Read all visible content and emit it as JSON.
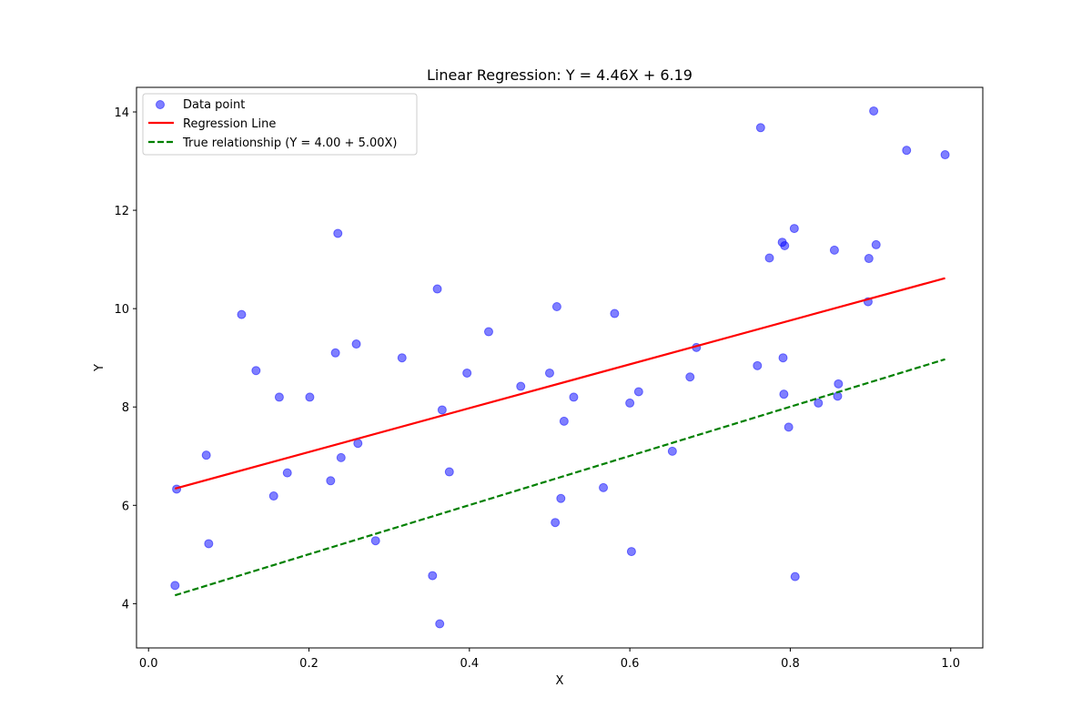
{
  "chart_data": {
    "type": "scatter",
    "title": "Linear Regression: Y = 4.46X + 6.19",
    "xlabel": "X",
    "ylabel": "Y",
    "xlim": [
      -0.015,
      1.04
    ],
    "ylim": [
      3.1,
      14.5
    ],
    "xticks": [
      0.0,
      0.2,
      0.4,
      0.6,
      0.8,
      1.0
    ],
    "xtick_labels": [
      "0.0",
      "0.2",
      "0.4",
      "0.6",
      "0.8",
      "1.0"
    ],
    "yticks": [
      4,
      6,
      8,
      10,
      12,
      14
    ],
    "ytick_labels": [
      "4",
      "6",
      "8",
      "10",
      "12",
      "14"
    ],
    "grid": false,
    "legend_position": "top-left",
    "series": [
      {
        "name": "Data point",
        "kind": "scatter",
        "color": "#0000ff",
        "points": [
          [
            0.033,
            4.37
          ],
          [
            0.035,
            6.33
          ],
          [
            0.072,
            7.02
          ],
          [
            0.075,
            5.22
          ],
          [
            0.116,
            9.88
          ],
          [
            0.134,
            8.74
          ],
          [
            0.156,
            6.19
          ],
          [
            0.163,
            8.2
          ],
          [
            0.173,
            6.66
          ],
          [
            0.201,
            8.2
          ],
          [
            0.227,
            6.5
          ],
          [
            0.233,
            9.1
          ],
          [
            0.236,
            11.53
          ],
          [
            0.24,
            6.97
          ],
          [
            0.259,
            9.28
          ],
          [
            0.261,
            7.26
          ],
          [
            0.283,
            5.28
          ],
          [
            0.316,
            9.0
          ],
          [
            0.354,
            4.57
          ],
          [
            0.36,
            10.4
          ],
          [
            0.363,
            3.59
          ],
          [
            0.366,
            7.94
          ],
          [
            0.375,
            6.68
          ],
          [
            0.397,
            8.69
          ],
          [
            0.424,
            9.53
          ],
          [
            0.464,
            8.42
          ],
          [
            0.5,
            8.69
          ],
          [
            0.507,
            5.65
          ],
          [
            0.509,
            10.04
          ],
          [
            0.514,
            6.14
          ],
          [
            0.518,
            7.71
          ],
          [
            0.53,
            8.2
          ],
          [
            0.567,
            6.36
          ],
          [
            0.581,
            9.9
          ],
          [
            0.6,
            8.08
          ],
          [
            0.602,
            5.06
          ],
          [
            0.611,
            8.31
          ],
          [
            0.653,
            7.1
          ],
          [
            0.675,
            8.61
          ],
          [
            0.683,
            9.21
          ],
          [
            0.759,
            8.84
          ],
          [
            0.763,
            13.68
          ],
          [
            0.774,
            11.03
          ],
          [
            0.79,
            11.35
          ],
          [
            0.791,
            9.0
          ],
          [
            0.792,
            8.26
          ],
          [
            0.793,
            11.28
          ],
          [
            0.798,
            7.59
          ],
          [
            0.805,
            11.63
          ],
          [
            0.806,
            4.55
          ],
          [
            0.835,
            8.08
          ],
          [
            0.855,
            11.19
          ],
          [
            0.859,
            8.22
          ],
          [
            0.86,
            8.47
          ],
          [
            0.897,
            10.14
          ],
          [
            0.898,
            11.02
          ],
          [
            0.904,
            14.02
          ],
          [
            0.907,
            11.3
          ],
          [
            0.945,
            13.22
          ],
          [
            0.993,
            13.13
          ]
        ]
      },
      {
        "name": "Regression Line",
        "kind": "line",
        "color": "#ff0000",
        "dash": "solid",
        "x": [
          0.033,
          0.993
        ],
        "y": [
          6.34,
          10.62
        ]
      },
      {
        "name": "True relationship (Y = 4.00 + 5.00X)",
        "kind": "line",
        "color": "#008000",
        "dash": "dashed",
        "x": [
          0.033,
          0.993
        ],
        "y": [
          4.17,
          8.97
        ]
      }
    ]
  }
}
